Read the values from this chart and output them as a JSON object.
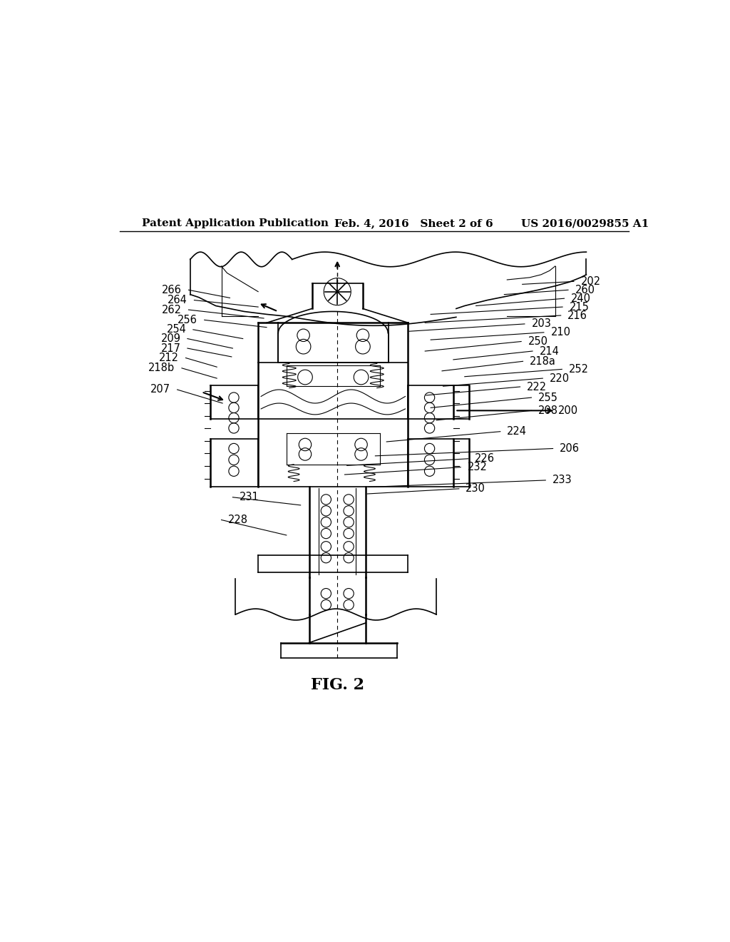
{
  "header_left": "Patent Application Publication",
  "header_mid": "Feb. 4, 2016   Sheet 2 of 6",
  "header_right": "US 2016/0029855 A1",
  "fig_label": "FIG. 2",
  "background_color": "#ffffff",
  "line_color": "#000000",
  "header_fontsize": 11,
  "fig_label_fontsize": 16,
  "label_fontsize": 10.5
}
